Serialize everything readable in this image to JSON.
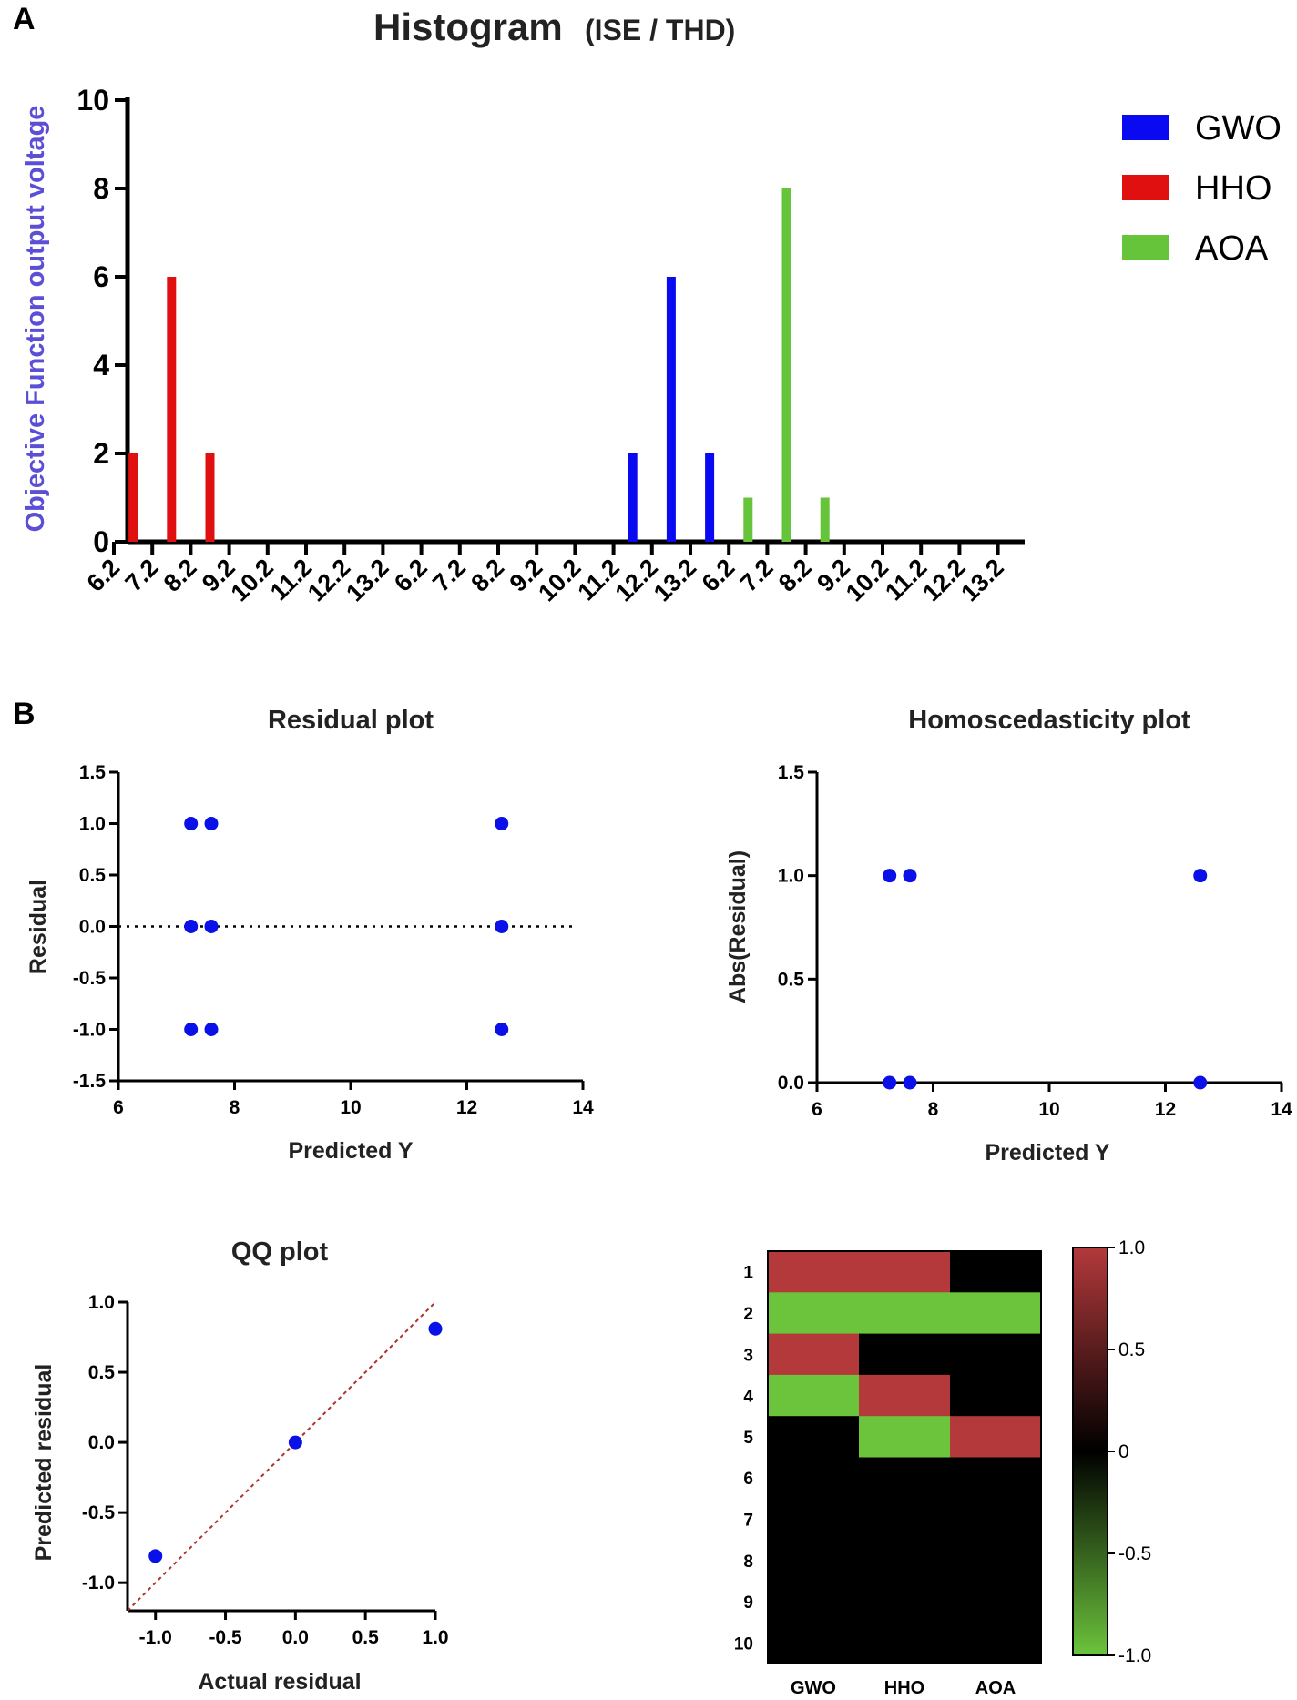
{
  "panel_labels": {
    "a": "A",
    "b": "B"
  },
  "chart_data": [
    {
      "id": "histogram",
      "type": "bar",
      "title": "Histogram",
      "title_suffix": "(ISE / THD)",
      "ylabel": "Objective Function output voltage",
      "ylim": [
        0,
        10
      ],
      "yticks": [
        0,
        2,
        4,
        6,
        8,
        10
      ],
      "tick_labels": [
        "6.2",
        "7.2",
        "8.2",
        "9.2",
        "10.2",
        "11.2",
        "12.2",
        "13.2",
        "6.2",
        "7.2",
        "8.2",
        "9.2",
        "10.2",
        "11.2",
        "12.2",
        "13.2",
        "6.2",
        "7.2",
        "8.2",
        "9.2",
        "10.2",
        "11.2",
        "12.2",
        "13.2"
      ],
      "legend_position": "top-right",
      "series": [
        {
          "name": "GWO",
          "color": "#0a0af2",
          "x": [
            11.7,
            12.7,
            13.7
          ],
          "values": [
            2,
            6,
            2
          ]
        },
        {
          "name": "HHO",
          "color": "#e01010",
          "x": [
            6.7,
            7.7,
            8.7
          ],
          "values": [
            2,
            6,
            2
          ]
        },
        {
          "name": "AOA",
          "color": "#66c43a",
          "x": [
            6.7,
            7.7,
            8.7
          ],
          "values": [
            1,
            8,
            1
          ]
        }
      ]
    },
    {
      "id": "residual",
      "type": "scatter",
      "title": "Residual plot",
      "xlabel": "Predicted Y",
      "ylabel": "Residual",
      "xlim": [
        6,
        14
      ],
      "ylim": [
        -1.5,
        1.5
      ],
      "xticks": [
        "6",
        "8",
        "10",
        "12",
        "14"
      ],
      "yticks": [
        "1.5",
        "1.0",
        "0.5",
        "0.0",
        "-0.5",
        "-1.0",
        "-1.5"
      ],
      "zero_line": true,
      "points": [
        [
          7.25,
          1
        ],
        [
          7.6,
          1
        ],
        [
          12.6,
          1
        ],
        [
          7.25,
          0
        ],
        [
          7.6,
          0
        ],
        [
          12.6,
          0
        ],
        [
          7.25,
          -1
        ],
        [
          7.6,
          -1
        ],
        [
          12.6,
          -1
        ]
      ]
    },
    {
      "id": "homoscedasticity",
      "type": "scatter",
      "title": "Homoscedasticity plot",
      "xlabel": "Predicted Y",
      "ylabel": "Abs(Residual)",
      "xlim": [
        6,
        14
      ],
      "ylim": [
        0,
        1.5
      ],
      "xticks": [
        "6",
        "8",
        "10",
        "12",
        "14"
      ],
      "yticks": [
        "1.5",
        "1.0",
        "0.5",
        "0.0"
      ],
      "points": [
        [
          7.25,
          1
        ],
        [
          7.6,
          1
        ],
        [
          12.6,
          1
        ],
        [
          7.25,
          0
        ],
        [
          7.6,
          0
        ],
        [
          12.6,
          0
        ]
      ]
    },
    {
      "id": "qq",
      "type": "scatter",
      "title": "QQ plot",
      "xlabel": "Actual residual",
      "ylabel": "Predicted residual",
      "xlim": [
        -1.2,
        1.0
      ],
      "ylim": [
        -1.2,
        1.0
      ],
      "xticks": [
        "-1.0",
        "-0.5",
        "0.0",
        "0.5",
        "1.0"
      ],
      "yticks": [
        "1.0",
        "0.5",
        "0.0",
        "-0.5",
        "-1.0"
      ],
      "reference_line": "identity",
      "points": [
        [
          -1.0,
          -0.81
        ],
        [
          0.0,
          0.0
        ],
        [
          1.0,
          0.81
        ]
      ]
    },
    {
      "id": "heatmap",
      "type": "heatmap",
      "columns": [
        "GWO",
        "HHO",
        "AOA"
      ],
      "rows": [
        "1",
        "2",
        "3",
        "4",
        "5",
        "6",
        "7",
        "8",
        "9",
        "10"
      ],
      "values": [
        [
          1,
          1,
          0
        ],
        [
          -1,
          -1,
          -1
        ],
        [
          1,
          0,
          0
        ],
        [
          -1,
          1,
          0
        ],
        [
          0,
          -1,
          1
        ],
        [
          0,
          0,
          0
        ],
        [
          0,
          0,
          0
        ],
        [
          0,
          0,
          0
        ],
        [
          0,
          0,
          0
        ],
        [
          0,
          0,
          0
        ]
      ],
      "colorbar_ticks": [
        "1.0",
        "0.5",
        "0",
        "-0.5",
        "-1.0"
      ],
      "colors": {
        "positive": "#b3393b",
        "negative": "#6cc43c",
        "zero": "#000000"
      }
    }
  ]
}
